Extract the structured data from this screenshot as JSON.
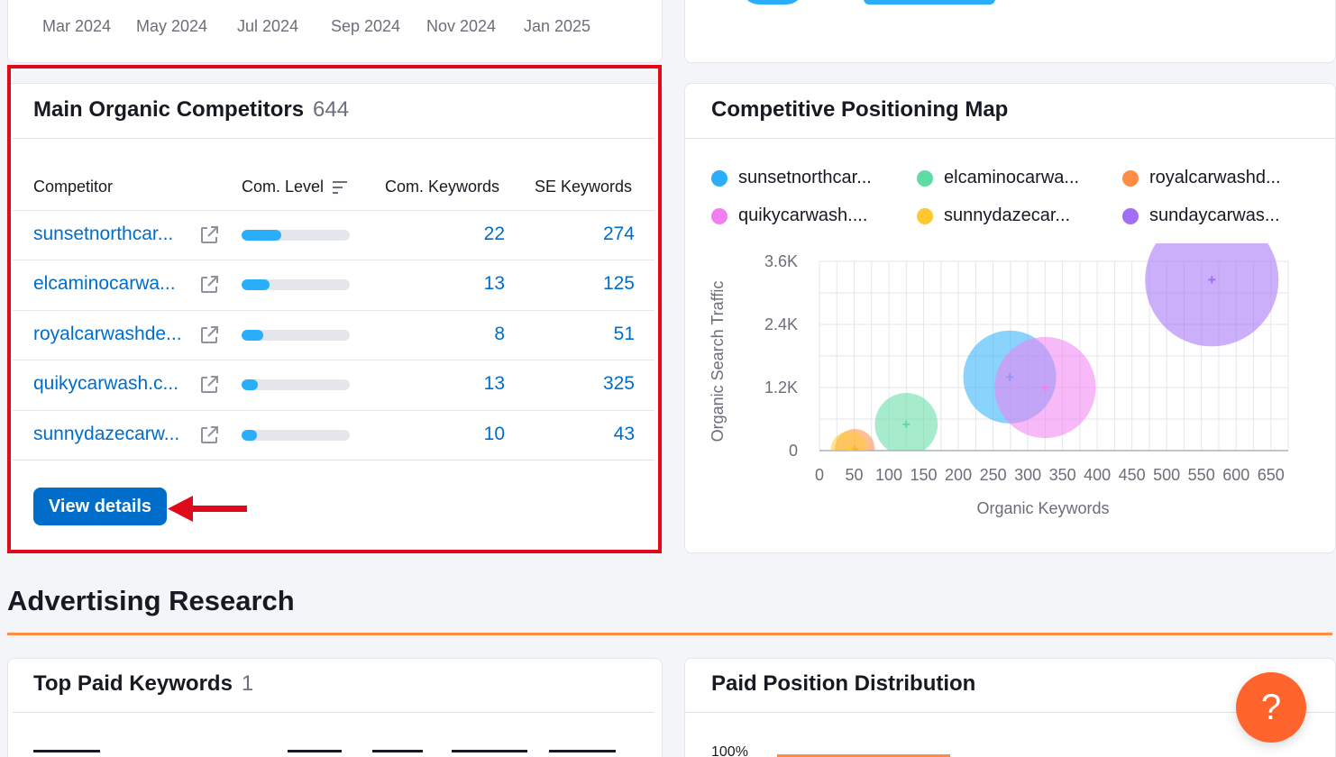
{
  "trend_axis": {
    "months": [
      "Mar 2024",
      "May 2024",
      "Jul 2024",
      "Sep 2024",
      "Nov 2024",
      "Jan 2025"
    ]
  },
  "competitors": {
    "title": "Main Organic Competitors",
    "count": "644",
    "headers": {
      "competitor": "Competitor",
      "com_level": "Com. Level",
      "com_keywords": "Com. Keywords",
      "se_keywords": "SE Keywords"
    },
    "rows": [
      {
        "domain": "sunsetnorthcar...",
        "level": 0.37,
        "com_keywords": "22",
        "se_keywords": "274"
      },
      {
        "domain": "elcaminocarwa...",
        "level": 0.26,
        "com_keywords": "13",
        "se_keywords": "125"
      },
      {
        "domain": "royalcarwashde...",
        "level": 0.2,
        "com_keywords": "8",
        "se_keywords": "51"
      },
      {
        "domain": "quikycarwash.c...",
        "level": 0.15,
        "com_keywords": "13",
        "se_keywords": "325"
      },
      {
        "domain": "sunnydazecarw...",
        "level": 0.14,
        "com_keywords": "10",
        "se_keywords": "43"
      }
    ],
    "view_details": "View details"
  },
  "positioning_map": {
    "title": "Competitive Positioning Map",
    "legend": [
      {
        "label": "sunsetnorthcar...",
        "color": "#2aaef9"
      },
      {
        "label": "elcaminocarwa...",
        "color": "#5fdba4"
      },
      {
        "label": "royalcarwashd...",
        "color": "#ff8c42"
      },
      {
        "label": "quikycarwash....",
        "color": "#f27ff2"
      },
      {
        "label": "sunnydazecar...",
        "color": "#ffc830"
      },
      {
        "label": "sundaycarwas...",
        "color": "#a36ef5"
      }
    ]
  },
  "chart_data": {
    "type": "scatter",
    "xlabel": "Organic Keywords",
    "ylabel": "Organic Search Traffic",
    "xlim": [
      0,
      675
    ],
    "ylim": [
      0,
      3600
    ],
    "x_ticks": [
      "0",
      "50",
      "100",
      "150",
      "200",
      "250",
      "300",
      "350",
      "400",
      "450",
      "500",
      "550",
      "600",
      "650"
    ],
    "y_ticks": [
      "0",
      "1.2K",
      "2.4K",
      "3.6K"
    ],
    "grid": true,
    "series": [
      {
        "name": "sunsetnorthcar...",
        "color": "#2aaef9",
        "x": 274,
        "y": 1400
      },
      {
        "name": "elcaminocarwa...",
        "color": "#5fdba4",
        "x": 125,
        "y": 500
      },
      {
        "name": "royalcarwashd...",
        "color": "#ff8c42",
        "x": 51,
        "y": 30
      },
      {
        "name": "quikycarwash....",
        "color": "#f27ff2",
        "x": 325,
        "y": 1200
      },
      {
        "name": "sunnydazecar...",
        "color": "#ffc830",
        "x": 43,
        "y": 20
      },
      {
        "name": "sundaycarwas...",
        "color": "#a36ef5",
        "x": 565,
        "y": 3250
      }
    ]
  },
  "advertising": {
    "section_title": "Advertising Research",
    "top_paid_title": "Top Paid Keywords",
    "top_paid_count": "1",
    "paid_distribution_title": "Paid Position Distribution",
    "paid_axis_top": "100%"
  },
  "help": {
    "label": "?"
  }
}
